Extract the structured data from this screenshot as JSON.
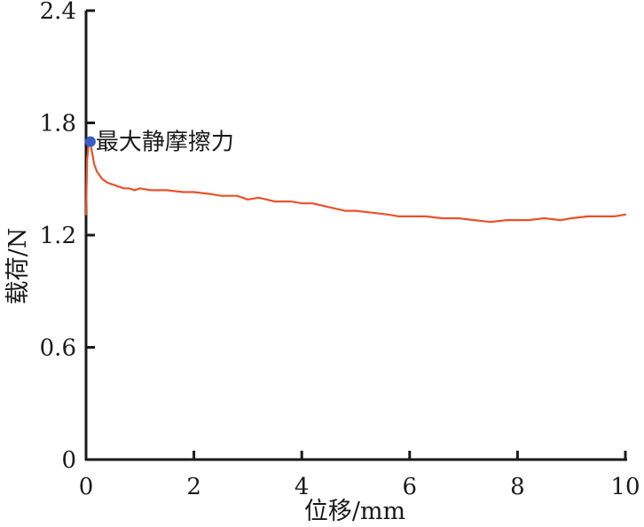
{
  "chart_data": {
    "type": "line",
    "title": "",
    "xlabel": "位移/mm",
    "ylabel": "载荷/N",
    "xlim": [
      0,
      10
    ],
    "ylim": [
      0,
      2.4
    ],
    "x_ticks": [
      {
        "value": 0,
        "label": "0"
      },
      {
        "value": 2,
        "label": "2"
      },
      {
        "value": 4,
        "label": "4"
      },
      {
        "value": 6,
        "label": "6"
      },
      {
        "value": 8,
        "label": "8"
      },
      {
        "value": 10,
        "label": "10"
      }
    ],
    "y_ticks": [
      {
        "value": 0,
        "label": "0"
      },
      {
        "value": 0.6,
        "label": "0.6"
      },
      {
        "value": 1.2,
        "label": "1.2"
      },
      {
        "value": 1.8,
        "label": "1.8"
      },
      {
        "value": 2.4,
        "label": "2.4"
      }
    ],
    "grid": false,
    "line_color": "#e8522a",
    "marker_color": "#3a5cc7",
    "series": [
      {
        "x": [
          0.0,
          0.02,
          0.05,
          0.08,
          0.12,
          0.15,
          0.2,
          0.3,
          0.4,
          0.5,
          0.6,
          0.7,
          0.8,
          0.9,
          1.0,
          1.2,
          1.5,
          1.8,
          2.0,
          2.3,
          2.5,
          2.8,
          3.0,
          3.2,
          3.5,
          3.8,
          4.0,
          4.2,
          4.5,
          4.8,
          5.0,
          5.3,
          5.6,
          5.8,
          6.0,
          6.3,
          6.6,
          6.9,
          7.2,
          7.5,
          7.8,
          8.0,
          8.2,
          8.5,
          8.8,
          9.0,
          9.3,
          9.6,
          9.8,
          10.0
        ],
        "y": [
          1.31,
          1.6,
          1.7,
          1.69,
          1.63,
          1.58,
          1.54,
          1.5,
          1.48,
          1.47,
          1.46,
          1.45,
          1.45,
          1.44,
          1.45,
          1.44,
          1.44,
          1.43,
          1.43,
          1.42,
          1.41,
          1.41,
          1.39,
          1.4,
          1.38,
          1.38,
          1.37,
          1.37,
          1.35,
          1.33,
          1.33,
          1.32,
          1.31,
          1.3,
          1.3,
          1.3,
          1.29,
          1.29,
          1.28,
          1.27,
          1.28,
          1.28,
          1.28,
          1.29,
          1.28,
          1.29,
          1.3,
          1.3,
          1.3,
          1.31
        ]
      }
    ],
    "annotations": [
      {
        "text": "最大静摩擦力",
        "x": 0.08,
        "y": 1.7
      }
    ]
  }
}
